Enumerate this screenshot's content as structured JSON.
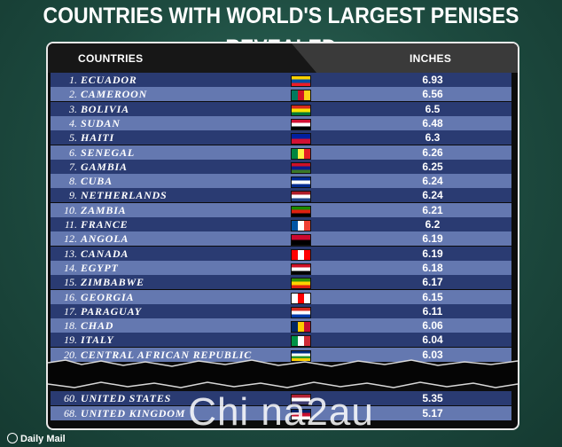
{
  "headline": "COUNTRIES WITH WORLD'S LARGEST PENISES REVEALED",
  "source_logo": "Daily Mail",
  "watermark": "Chi na2au",
  "chart_data": {
    "type": "table",
    "columns": [
      "COUNTRIES",
      "INCHES"
    ],
    "rows": [
      {
        "rank": "1.",
        "country": "ECUADOR",
        "value": "6.93",
        "flag": [
          "#ffd100",
          "#034ea2",
          "#ed1c24"
        ]
      },
      {
        "rank": "2.",
        "country": "CAMEROON",
        "value": "6.56",
        "flag": [
          "#007a5e",
          "#ce1126",
          "#fcd116"
        ]
      },
      {
        "rank": "3.",
        "country": "BOLIVIA",
        "value": "6.5",
        "flag": [
          "#d52b1e",
          "#f9e300",
          "#007934"
        ]
      },
      {
        "rank": "4.",
        "country": "SUDAN",
        "value": "6.48",
        "flag": [
          "#d21034",
          "#ffffff",
          "#000000"
        ]
      },
      {
        "rank": "5.",
        "country": "HAITI",
        "value": "6.3",
        "flag": [
          "#00209f",
          "#d21034"
        ]
      },
      {
        "rank": "6.",
        "country": "SENEGAL",
        "value": "6.26",
        "flag": [
          "#00853f",
          "#fdef42",
          "#e31b23"
        ]
      },
      {
        "rank": "7.",
        "country": "GAMBIA",
        "value": "6.25",
        "flag": [
          "#ce1126",
          "#0c1c8c",
          "#3a7728"
        ]
      },
      {
        "rank": "8.",
        "country": "CUBA",
        "value": "6.24",
        "flag": [
          "#002a8f",
          "#ffffff",
          "#002a8f"
        ]
      },
      {
        "rank": "9.",
        "country": "NETHERLANDS",
        "value": "6.24",
        "flag": [
          "#ae1c28",
          "#ffffff",
          "#21468b"
        ]
      },
      {
        "rank": "10.",
        "country": "ZAMBIA",
        "value": "6.21",
        "flag": [
          "#198a00",
          "#de2010",
          "#000000"
        ]
      },
      {
        "rank": "11.",
        "country": "FRANCE",
        "value": "6.2",
        "flag": [
          "#0055a4",
          "#ffffff",
          "#ef4135"
        ]
      },
      {
        "rank": "12.",
        "country": "ANGOLA",
        "value": "6.19",
        "flag": [
          "#cc092f",
          "#000000"
        ]
      },
      {
        "rank": "13.",
        "country": "CANADA",
        "value": "6.19",
        "flag": [
          "#ff0000",
          "#ffffff",
          "#ff0000"
        ]
      },
      {
        "rank": "14.",
        "country": "EGYPT",
        "value": "6.18",
        "flag": [
          "#ce1126",
          "#ffffff",
          "#000000"
        ]
      },
      {
        "rank": "15.",
        "country": "ZIMBABWE",
        "value": "6.17",
        "flag": [
          "#319208",
          "#ffd200",
          "#de2010"
        ]
      },
      {
        "rank": "16.",
        "country": "GEORGIA",
        "value": "6.15",
        "flag": [
          "#ffffff",
          "#ff0000",
          "#ffffff"
        ]
      },
      {
        "rank": "17.",
        "country": "PARAGUAY",
        "value": "6.11",
        "flag": [
          "#d52b1e",
          "#ffffff",
          "#0038a8"
        ]
      },
      {
        "rank": "18.",
        "country": "CHAD",
        "value": "6.06",
        "flag": [
          "#002664",
          "#fecb00",
          "#c60c30"
        ]
      },
      {
        "rank": "19.",
        "country": "ITALY",
        "value": "6.04",
        "flag": [
          "#009246",
          "#ffffff",
          "#ce2b37"
        ]
      },
      {
        "rank": "20.",
        "country": "CENTRAL AFRICAN REPUBLIC",
        "value": "6.03",
        "flag": [
          "#003082",
          "#ffffff",
          "#289728",
          "#ffce00"
        ]
      },
      {
        "rank": "60.",
        "country": "UNITED STATES",
        "value": "5.35",
        "flag": [
          "#b22234",
          "#ffffff",
          "#3c3b6e"
        ]
      },
      {
        "rank": "68.",
        "country": "UNITED KINGDOM",
        "value": "5.17",
        "flag": [
          "#012169",
          "#c8102e",
          "#ffffff"
        ]
      }
    ]
  }
}
